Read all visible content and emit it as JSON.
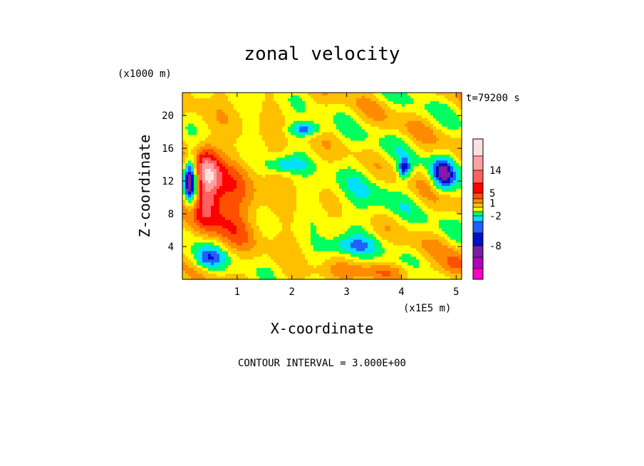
{
  "chart_data": {
    "type": "heatmap",
    "title": "zonal velocity",
    "time_label": "t=79200 s",
    "xlabel": "X-coordinate",
    "ylabel": "Z-coordinate",
    "x_scale_label": "(x1E5 m)",
    "y_scale_label": "(x1000 m)",
    "xlim": [
      0,
      5.1
    ],
    "ylim": [
      0,
      22.8
    ],
    "x_ticks": [
      1,
      2,
      3,
      4,
      5
    ],
    "x_tick_labels": [
      "1",
      "2",
      "3",
      "4",
      "5"
    ],
    "y_ticks": [
      4,
      8,
      12,
      16,
      20
    ],
    "y_tick_labels": [
      "4",
      "8",
      "12",
      "16",
      "20"
    ],
    "contour_interval_label": "CONTOUR INTERVAL = 3.000E+00",
    "colorbar": {
      "levels": [
        {
          "color": "#ff00c8"
        },
        {
          "color": "#b000c0"
        },
        {
          "color": "#7a1fa2"
        },
        {
          "color": "#0010c8"
        },
        {
          "color": "#2060ff"
        },
        {
          "color": "#00e0ff"
        },
        {
          "color": "#00ff60"
        },
        {
          "color": "#ffff00"
        },
        {
          "color": "#ffc000"
        },
        {
          "color": "#ff8c00"
        },
        {
          "color": "#ff5000"
        },
        {
          "color": "#ff0000"
        },
        {
          "color": "#ff6060"
        },
        {
          "color": "#ffa0a0"
        },
        {
          "color": "#ffe0e0"
        }
      ],
      "tick_labels": [
        "14",
        "5",
        "1",
        "-2",
        "-8"
      ]
    },
    "field_description_only_for_rendering": false
  }
}
